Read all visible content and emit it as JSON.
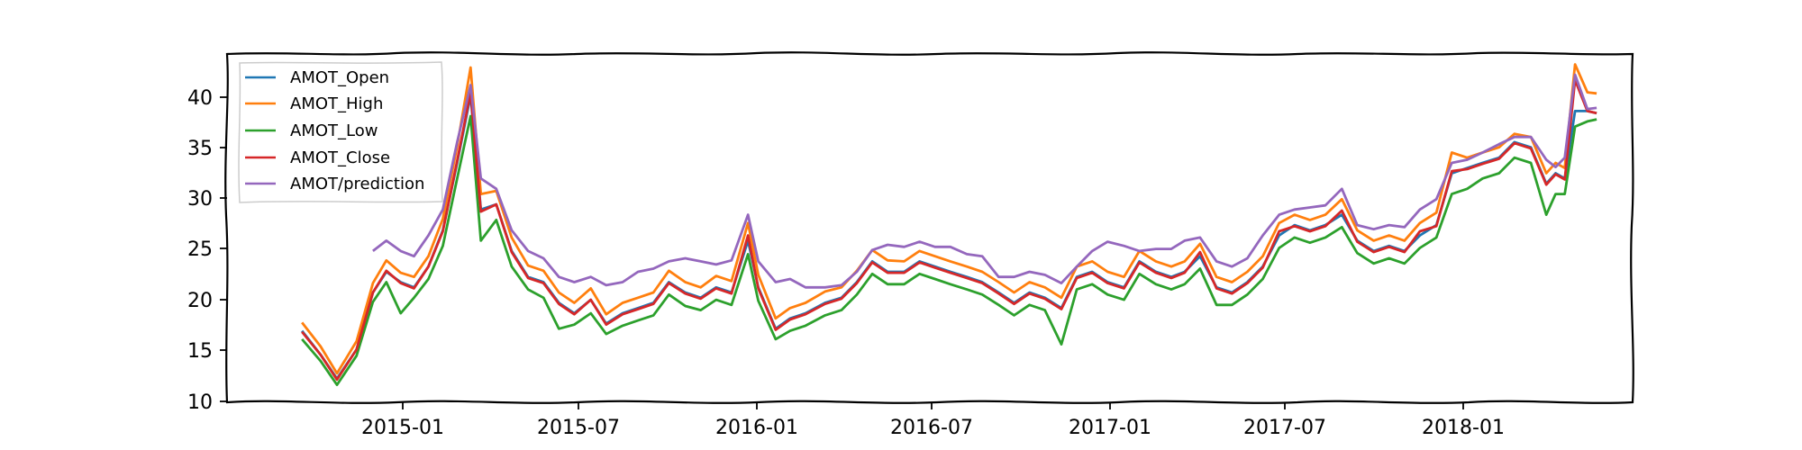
{
  "chart_data": {
    "type": "line",
    "title": "",
    "xlabel": "",
    "ylabel": "",
    "ylim": [
      10,
      43.5
    ],
    "xlim": [
      "2014-08-16",
      "2018-05-15"
    ],
    "grid": false,
    "legend_position": "top-left",
    "x_ticks": [
      "2015-01",
      "2015-07",
      "2016-01",
      "2016-07",
      "2017-01",
      "2017-07",
      "2018-01"
    ],
    "y_ticks": [
      10,
      15,
      20,
      25,
      30,
      35,
      40
    ],
    "x": [
      "2014-10-28",
      "2014-11-15",
      "2014-12-01",
      "2014-12-20",
      "2015-01-05",
      "2015-01-18",
      "2015-02-01",
      "2015-02-14",
      "2015-02-28",
      "2015-03-14",
      "2015-03-28",
      "2015-04-10",
      "2015-04-20",
      "2015-05-05",
      "2015-05-20",
      "2015-06-05",
      "2015-06-20",
      "2015-07-05",
      "2015-07-20",
      "2015-08-05",
      "2015-08-20",
      "2015-09-05",
      "2015-09-20",
      "2015-10-05",
      "2015-10-20",
      "2015-11-05",
      "2015-11-20",
      "2015-12-05",
      "2015-12-20",
      "2016-01-05",
      "2016-01-15",
      "2016-02-01",
      "2016-02-15",
      "2016-03-01",
      "2016-03-20",
      "2016-04-05",
      "2016-04-20",
      "2016-05-05",
      "2016-05-20",
      "2016-06-05",
      "2016-06-20",
      "2016-07-05",
      "2016-07-20",
      "2016-08-05",
      "2016-08-20",
      "2016-09-05",
      "2016-09-20",
      "2016-10-05",
      "2016-10-20",
      "2016-11-05",
      "2016-11-20",
      "2016-12-05",
      "2016-12-20",
      "2017-01-05",
      "2017-01-20",
      "2017-02-05",
      "2017-02-20",
      "2017-03-05",
      "2017-03-20",
      "2017-04-05",
      "2017-04-20",
      "2017-05-05",
      "2017-05-20",
      "2017-06-05",
      "2017-06-20",
      "2017-07-05",
      "2017-07-20",
      "2017-08-05",
      "2017-08-20",
      "2017-09-05",
      "2017-09-20",
      "2017-10-05",
      "2017-10-20",
      "2017-11-05",
      "2017-11-20",
      "2017-12-05",
      "2017-12-20",
      "2018-01-05",
      "2018-01-20",
      "2018-02-05",
      "2018-02-20",
      "2018-03-01",
      "2018-03-10",
      "2018-03-20",
      "2018-04-01",
      "2018-04-10"
    ],
    "series": [
      {
        "name": "AMOT_Open",
        "color": "#1f77b4",
        "values": [
          16.8,
          14.5,
          12.2,
          15.0,
          20.5,
          22.5,
          21.5,
          21.0,
          23.0,
          26.5,
          33.0,
          39.5,
          28.5,
          29.0,
          24.5,
          22.0,
          21.5,
          19.5,
          18.5,
          19.8,
          17.5,
          18.5,
          19.0,
          19.5,
          21.5,
          20.5,
          20.0,
          21.0,
          20.5,
          25.5,
          21.0,
          17.0,
          18.0,
          18.5,
          19.5,
          20.0,
          21.5,
          23.5,
          22.5,
          22.5,
          23.5,
          23.0,
          22.5,
          22.0,
          21.5,
          20.5,
          19.5,
          20.5,
          20.0,
          19.0,
          22.0,
          22.5,
          21.5,
          21.0,
          23.5,
          22.5,
          22.0,
          22.5,
          24.0,
          21.0,
          20.5,
          21.5,
          23.0,
          26.0,
          27.0,
          26.5,
          27.0,
          28.0,
          25.5,
          24.5,
          25.0,
          24.5,
          26.0,
          27.0,
          32.0,
          32.5,
          33.0,
          33.5,
          35.0,
          34.5,
          31.0,
          32.0,
          31.5,
          38.0,
          38.0,
          37.8
        ]
      },
      {
        "name": "AMOT_High",
        "color": "#ff7f0e",
        "values": [
          17.6,
          15.3,
          12.7,
          15.8,
          21.4,
          23.6,
          22.4,
          22.0,
          24.0,
          27.6,
          34.6,
          42.2,
          30.0,
          30.3,
          25.8,
          23.1,
          22.6,
          20.5,
          19.5,
          20.9,
          18.4,
          19.5,
          20.0,
          20.5,
          22.6,
          21.5,
          21.0,
          22.1,
          21.6,
          27.2,
          22.2,
          18.0,
          19.0,
          19.5,
          20.6,
          21.0,
          22.6,
          24.6,
          23.6,
          23.5,
          24.5,
          24.0,
          23.5,
          23.0,
          22.5,
          21.5,
          20.5,
          21.5,
          21.0,
          20.0,
          23.0,
          23.5,
          22.5,
          22.0,
          24.5,
          23.5,
          23.0,
          23.5,
          25.2,
          22.0,
          21.5,
          22.5,
          24.0,
          27.2,
          28.0,
          27.5,
          28.0,
          29.5,
          26.5,
          25.5,
          26.0,
          25.5,
          27.2,
          28.2,
          34.0,
          33.5,
          34.0,
          34.5,
          35.8,
          35.5,
          32.0,
          33.0,
          32.5,
          42.5,
          39.8,
          39.7
        ]
      },
      {
        "name": "AMOT_Low",
        "color": "#2ca02c",
        "values": [
          16.0,
          13.9,
          11.6,
          14.4,
          19.6,
          21.5,
          18.5,
          20.0,
          21.8,
          25.0,
          31.5,
          37.5,
          25.5,
          27.5,
          23.0,
          20.8,
          20.0,
          17.0,
          17.4,
          18.5,
          16.5,
          17.3,
          17.8,
          18.3,
          20.3,
          19.2,
          18.8,
          19.8,
          19.3,
          24.2,
          19.7,
          16.0,
          16.8,
          17.3,
          18.3,
          18.8,
          20.3,
          22.3,
          21.3,
          21.3,
          22.3,
          21.8,
          21.3,
          20.8,
          20.3,
          19.3,
          18.3,
          19.3,
          18.8,
          15.5,
          20.8,
          21.3,
          20.3,
          19.8,
          22.3,
          21.3,
          20.8,
          21.3,
          22.8,
          19.3,
          19.3,
          20.3,
          21.8,
          24.8,
          25.8,
          25.3,
          25.8,
          26.8,
          24.3,
          23.3,
          23.8,
          23.3,
          24.8,
          25.8,
          30.0,
          30.5,
          31.5,
          32.0,
          33.5,
          33.0,
          28.0,
          30.0,
          30.0,
          36.5,
          37.0,
          37.2
        ]
      },
      {
        "name": "AMOT_Close",
        "color": "#d62728",
        "values": [
          16.7,
          14.5,
          12.1,
          15.0,
          20.5,
          22.6,
          21.4,
          20.9,
          23.0,
          26.4,
          33.2,
          39.8,
          28.3,
          29.0,
          24.4,
          21.9,
          21.4,
          19.4,
          18.4,
          19.8,
          17.4,
          18.4,
          18.9,
          19.4,
          21.4,
          20.4,
          19.9,
          20.9,
          20.4,
          26.0,
          20.9,
          16.9,
          17.9,
          18.4,
          19.4,
          19.9,
          21.4,
          23.4,
          22.4,
          22.4,
          23.4,
          22.9,
          22.4,
          21.9,
          21.4,
          20.4,
          19.4,
          20.4,
          19.9,
          18.9,
          21.9,
          22.4,
          21.4,
          20.9,
          23.4,
          22.4,
          21.9,
          22.4,
          24.4,
          20.9,
          20.4,
          21.4,
          22.9,
          26.4,
          26.9,
          26.4,
          26.9,
          28.4,
          25.4,
          24.4,
          24.9,
          24.4,
          26.4,
          26.9,
          32.2,
          32.4,
          32.9,
          33.4,
          34.9,
          34.4,
          30.9,
          31.9,
          31.4,
          41.0,
          38.0,
          37.8
        ]
      },
      {
        "name": "AMOT/prediction",
        "color": "#9467bd",
        "values": [
          null,
          null,
          null,
          null,
          24.5,
          25.5,
          24.5,
          24.0,
          26.0,
          28.5,
          35.0,
          40.5,
          31.5,
          30.5,
          26.5,
          24.5,
          23.8,
          22.0,
          21.5,
          22.0,
          21.2,
          21.5,
          22.5,
          22.8,
          23.5,
          23.8,
          23.5,
          23.2,
          23.6,
          28.0,
          23.5,
          21.5,
          21.8,
          21.0,
          21.0,
          21.2,
          22.5,
          24.6,
          25.1,
          24.9,
          25.4,
          24.9,
          24.9,
          24.2,
          24.0,
          22.0,
          22.0,
          22.5,
          22.2,
          21.4,
          23.0,
          24.5,
          25.4,
          25.0,
          24.5,
          24.7,
          24.7,
          25.5,
          25.8,
          23.5,
          23.0,
          23.8,
          26.0,
          28.0,
          28.5,
          28.7,
          28.9,
          30.5,
          27.0,
          26.6,
          27.0,
          26.8,
          28.5,
          29.5,
          33.0,
          33.3,
          34.0,
          34.8,
          35.5,
          35.5,
          33.3,
          32.6,
          33.5,
          41.5,
          38.2,
          38.3
        ]
      }
    ]
  }
}
